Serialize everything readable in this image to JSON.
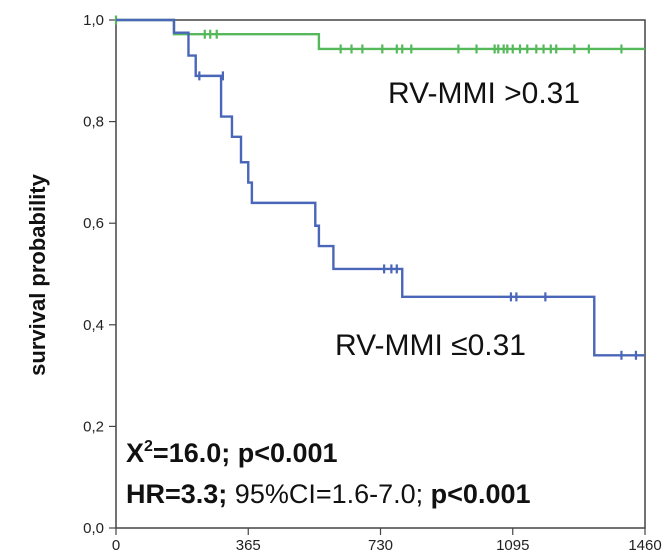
{
  "chart_data": {
    "type": "line",
    "subtype": "kaplan-meier step",
    "xlabel": "",
    "ylabel": "survival probability",
    "xlim": [
      0,
      1460
    ],
    "ylim": [
      0,
      1.0
    ],
    "x_ticks": [
      0,
      365,
      730,
      1095,
      1460
    ],
    "x_tick_labels": [
      "0",
      "365",
      "730",
      "1095",
      "1460"
    ],
    "y_ticks": [
      0,
      0.2,
      0.4,
      0.6,
      0.8,
      1.0
    ],
    "y_tick_labels": [
      "0,0",
      "0,2",
      "0,4",
      "0,6",
      "0,8",
      "1,0"
    ],
    "grid": false,
    "series": [
      {
        "name": "RV-MMI >0.31",
        "color": "#55b85a",
        "steps": [
          [
            0,
            1.0
          ],
          [
            160,
            0.972
          ],
          [
            560,
            0.943
          ],
          [
            1460,
            0.943
          ]
        ],
        "censored": [
          [
            0,
            1.0
          ],
          [
            245,
            0.972
          ],
          [
            260,
            0.972
          ],
          [
            278,
            0.972
          ],
          [
            620,
            0.943
          ],
          [
            650,
            0.943
          ],
          [
            680,
            0.943
          ],
          [
            735,
            0.943
          ],
          [
            775,
            0.943
          ],
          [
            790,
            0.943
          ],
          [
            815,
            0.943
          ],
          [
            945,
            0.943
          ],
          [
            995,
            0.943
          ],
          [
            1045,
            0.943
          ],
          [
            1055,
            0.943
          ],
          [
            1070,
            0.943
          ],
          [
            1080,
            0.943
          ],
          [
            1095,
            0.943
          ],
          [
            1115,
            0.943
          ],
          [
            1135,
            0.943
          ],
          [
            1160,
            0.943
          ],
          [
            1180,
            0.943
          ],
          [
            1200,
            0.943
          ],
          [
            1215,
            0.943
          ],
          [
            1265,
            0.943
          ],
          [
            1305,
            0.943
          ],
          [
            1395,
            0.943
          ]
        ]
      },
      {
        "name": "RV-MMI ≤0.31",
        "color": "#4a66b8",
        "steps": [
          [
            0,
            1.0
          ],
          [
            160,
            0.975
          ],
          [
            200,
            0.93
          ],
          [
            220,
            0.89
          ],
          [
            290,
            0.81
          ],
          [
            320,
            0.77
          ],
          [
            345,
            0.72
          ],
          [
            365,
            0.68
          ],
          [
            375,
            0.64
          ],
          [
            550,
            0.595
          ],
          [
            560,
            0.555
          ],
          [
            600,
            0.51
          ],
          [
            790,
            0.455
          ],
          [
            1320,
            0.34
          ],
          [
            1460,
            0.34
          ]
        ],
        "censored": [
          [
            230,
            0.89
          ],
          [
            295,
            0.89
          ],
          [
            740,
            0.51
          ],
          [
            760,
            0.51
          ],
          [
            775,
            0.51
          ],
          [
            1090,
            0.455
          ],
          [
            1105,
            0.455
          ],
          [
            1185,
            0.455
          ],
          [
            1395,
            0.34
          ],
          [
            1435,
            0.34
          ]
        ]
      }
    ],
    "annotations": {
      "upper_label": "RV-MMI >0.31",
      "lower_label": "RV-MMI ≤0.31",
      "chi_x": "X",
      "chi_sup": "2",
      "chi_rest": "=16.0; p<0.001",
      "hr": "HR=3.3;",
      "ci": " 95%CI=1.6-7.0;",
      "hr_p": " p<0.001"
    }
  }
}
